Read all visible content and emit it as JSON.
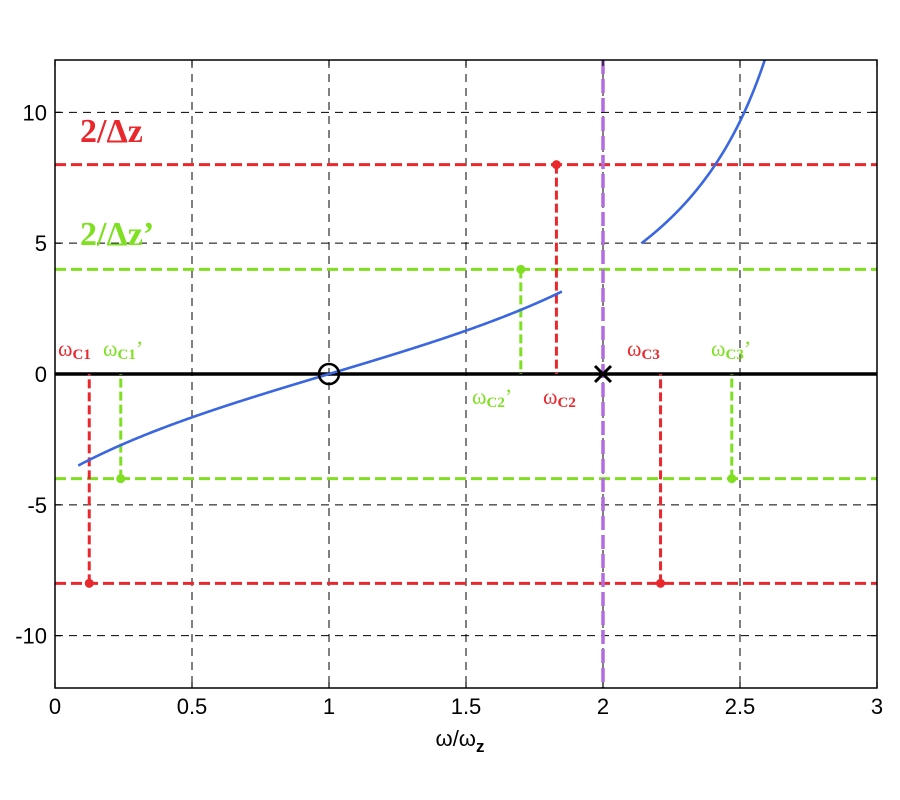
{
  "chart_data": {
    "type": "line",
    "xlabel": "ω/ω",
    "xlabel_sub": "z",
    "xlim": [
      0,
      3
    ],
    "ylim": [
      -12,
      12
    ],
    "x_ticks": [
      0,
      0.5,
      1,
      1.5,
      2,
      2.5,
      3
    ],
    "x_tick_labels": [
      "0",
      "0.5",
      "1",
      "1.5",
      "2",
      "2.5",
      "3"
    ],
    "y_ticks": [
      -10,
      -5,
      0,
      5,
      10
    ],
    "y_tick_labels": [
      "-10",
      "-5",
      "0",
      "5",
      "10"
    ],
    "grid": true,
    "curve": {
      "color": "#3a66e0",
      "branch_1_x_range": [
        0.085,
        1.85
      ],
      "branch_2_x_range": [
        2.14,
        3.0
      ],
      "asymptote_x": 2
    },
    "zero_line": {
      "y": 0,
      "color": "#000000"
    },
    "zero_marker": {
      "x": 1,
      "y": 0,
      "shape": "circle"
    },
    "pole_marker": {
      "x": 2,
      "y": 0,
      "shape": "cross"
    },
    "asymptote_line": {
      "x": 2,
      "color": "#b36be0"
    },
    "levels": [
      {
        "label": "2/Δz",
        "y": 8,
        "color": "#e8282d"
      },
      {
        "label": "2/Δz’",
        "y": 4,
        "color": "#7ee020"
      }
    ],
    "mirror_levels": [
      {
        "y": -8,
        "color": "#e8282d"
      },
      {
        "y": -4,
        "color": "#7ee020"
      }
    ],
    "crossings": [
      {
        "label": "ω",
        "sub": "C1",
        "x": 0.125,
        "y": -8,
        "color": "#e8282d",
        "label_pos": "above"
      },
      {
        "label": "ω",
        "sub": "C1",
        "prime": "’",
        "x": 0.24,
        "y": -4,
        "color": "#7ee020",
        "label_pos": "above"
      },
      {
        "label": "ω",
        "sub": "C2",
        "prime": "’",
        "x": 1.7,
        "y": 4,
        "color": "#7ee020",
        "label_pos": "below"
      },
      {
        "label": "ω",
        "sub": "C2",
        "x": 1.83,
        "y": 8,
        "color": "#e8282d",
        "label_pos": "below"
      },
      {
        "label": "ω",
        "sub": "C3",
        "x": 2.21,
        "y": -8,
        "color": "#e8282d",
        "label_pos": "above"
      },
      {
        "label": "ω",
        "sub": "C3",
        "prime": "’",
        "x": 2.47,
        "y": -4,
        "color": "#7ee020",
        "label_pos": "above"
      }
    ]
  }
}
